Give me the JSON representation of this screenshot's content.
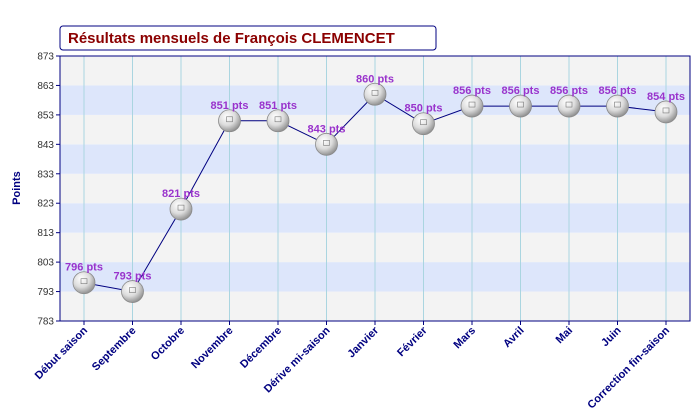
{
  "colors": {
    "title_text": "#8b0000",
    "title_box_border": "#000080",
    "plot_border": "#000080",
    "band_blue": "#dde6fb",
    "band_gray": "#f3f3f3",
    "vertical_grid": "#aad5e0",
    "line": "#000080",
    "data_label": "#9933cc",
    "category_label": "#000080",
    "axis_title": "#000080",
    "marker": "#c8c8c8"
  },
  "chart_data": {
    "type": "line",
    "title": "Résultats mensuels de François CLEMENCET",
    "ylabel": "Points",
    "xlabel": "",
    "ylim": [
      783,
      873
    ],
    "yticks": [
      783,
      793,
      803,
      813,
      823,
      833,
      843,
      853,
      863,
      873
    ],
    "grid": true,
    "categories": [
      "Début saison",
      "Septembre",
      "Octobre",
      "Novembre",
      "Décembre",
      "Dérive mi-saison",
      "Janvier",
      "Février",
      "Mars",
      "Avril",
      "Mai",
      "Juin",
      "Correction fin-saison"
    ],
    "values": [
      796,
      793,
      821,
      851,
      851,
      843,
      860,
      850,
      856,
      856,
      856,
      856,
      854
    ],
    "data_labels": [
      "796 pts",
      "793 pts",
      "821 pts",
      "851 pts",
      "851 pts",
      "843 pts",
      "860 pts",
      "850 pts",
      "856 pts",
      "856 pts",
      "856 pts",
      "856 pts",
      "854 pts"
    ]
  }
}
